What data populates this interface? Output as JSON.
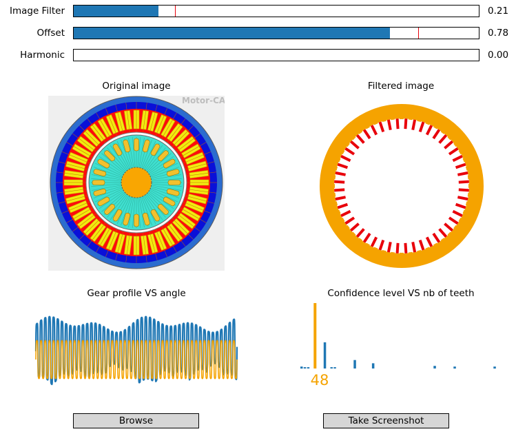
{
  "sliders": [
    {
      "label": "Image Filter",
      "value_text": "0.21",
      "fill": 0.21,
      "marker": 0.25
    },
    {
      "label": "Offset",
      "value_text": "0.78",
      "fill": 0.78,
      "marker": 0.85
    },
    {
      "label": "Harmonic",
      "value_text": "0.00",
      "fill": 0.0,
      "marker": null
    }
  ],
  "panels": {
    "original_title": "Original image",
    "filtered_title": "Filtered image",
    "gear_profile_title": "Gear profile VS angle",
    "confidence_title": "Confidence level VS nb of teeth"
  },
  "watermark": "Motor-CA",
  "detected_teeth": "48",
  "buttons": {
    "browse": "Browse",
    "screenshot": "Take Screenshot"
  },
  "colors": {
    "series_blue": "#1f77b4",
    "series_orange": "#f5a300",
    "marker_red": "#e8000b"
  },
  "chart_data": [
    {
      "type": "line",
      "title": "Gear profile VS angle",
      "series": [
        {
          "color": "#1f77b4",
          "cycles": 48
        },
        {
          "color": "#f5a300",
          "cycles": 48
        }
      ]
    },
    {
      "type": "bar",
      "title": "Confidence level VS nb of teeth",
      "highlight": {
        "x": 48,
        "value": 1.0
      },
      "values": [
        {
          "x": 40,
          "value": 0.03
        },
        {
          "x": 42,
          "value": 0.02
        },
        {
          "x": 44,
          "value": 0.02
        },
        {
          "x": 48,
          "value": 1.0
        },
        {
          "x": 54,
          "value": 0.4
        },
        {
          "x": 58,
          "value": 0.02
        },
        {
          "x": 60,
          "value": 0.02
        },
        {
          "x": 72,
          "value": 0.13
        },
        {
          "x": 83,
          "value": 0.08
        },
        {
          "x": 120,
          "value": 0.04
        },
        {
          "x": 132,
          "value": 0.03
        },
        {
          "x": 156,
          "value": 0.03
        }
      ],
      "xlim": [
        40,
        160
      ]
    }
  ]
}
